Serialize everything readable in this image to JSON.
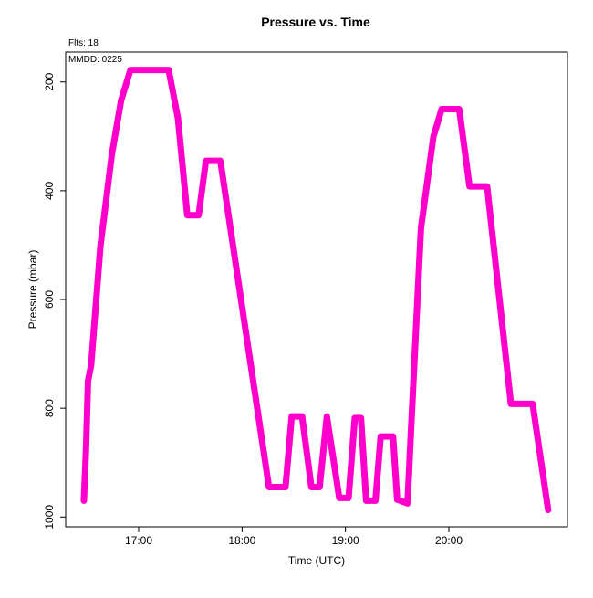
{
  "chart_data": {
    "type": "line",
    "title": "Pressure  vs. Time",
    "annotations": [
      "Flts: 18",
      "MMDD: 0225"
    ],
    "xlabel": "Time (UTC)",
    "ylabel": "Pressure (mbar)",
    "xlim": [
      16.294,
      21.147
    ],
    "ylim": [
      1018,
      145
    ],
    "xticks": [
      {
        "value": 17,
        "label": "17:00"
      },
      {
        "value": 18,
        "label": "18:00"
      },
      {
        "value": 19,
        "label": "19:00"
      },
      {
        "value": 20,
        "label": "20:00"
      }
    ],
    "yticks": [
      200,
      400,
      600,
      800,
      1000
    ],
    "x": [
      16.47,
      16.49,
      16.51,
      16.54,
      16.63,
      16.74,
      16.83,
      16.92,
      17.29,
      17.38,
      17.47,
      17.58,
      17.65,
      17.79,
      18.26,
      18.42,
      18.48,
      18.58,
      18.67,
      18.75,
      18.82,
      18.94,
      19.03,
      19.09,
      19.15,
      19.2,
      19.29,
      19.34,
      19.46,
      19.5,
      19.6,
      19.63,
      19.73,
      19.85,
      19.93,
      20.1,
      20.2,
      20.37,
      20.6,
      20.71,
      20.81,
      20.96
    ],
    "series": [
      {
        "name": "Pressure",
        "color": "#ff00cc",
        "values": [
          970,
          880,
          750,
          721,
          502,
          334,
          234,
          178,
          178,
          267,
          445,
          445,
          345,
          345,
          945,
          945,
          815,
          815,
          945,
          945,
          815,
          965,
          965,
          818,
          818,
          970,
          970,
          852,
          852,
          968,
          975,
          855,
          469,
          301,
          250,
          250,
          392,
          392,
          792,
          792,
          792,
          987
        ]
      }
    ]
  }
}
